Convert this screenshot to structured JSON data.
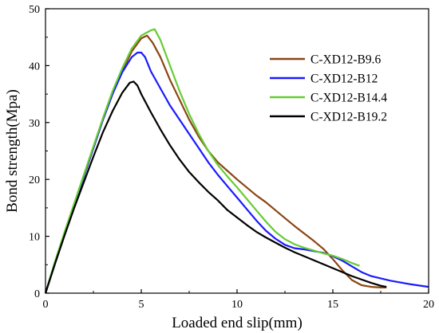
{
  "chart_data": {
    "type": "line",
    "xlabel": "Loaded end slip(mm)",
    "ylabel": "Bond strength(Mpa)",
    "xlim": [
      0,
      20
    ],
    "ylim": [
      0,
      50
    ],
    "xticks": [
      0,
      5,
      10,
      15,
      20
    ],
    "yticks": [
      0,
      10,
      20,
      30,
      40,
      50
    ],
    "grid": false,
    "legend_position": "top-right",
    "series": [
      {
        "name": "C-XD12-B9.6",
        "color": "#8B4513",
        "points": [
          [
            0,
            0
          ],
          [
            0.5,
            5.5
          ],
          [
            1,
            10.5
          ],
          [
            1.5,
            15.5
          ],
          [
            2,
            20.5
          ],
          [
            2.5,
            25.5
          ],
          [
            3,
            30.5
          ],
          [
            3.5,
            35
          ],
          [
            4,
            39
          ],
          [
            4.5,
            42.5
          ],
          [
            5,
            44.8
          ],
          [
            5.3,
            45.3
          ],
          [
            5.6,
            44
          ],
          [
            6,
            41.5
          ],
          [
            6.5,
            37.5
          ],
          [
            7,
            34
          ],
          [
            7.5,
            30.5
          ],
          [
            8,
            27.5
          ],
          [
            8.5,
            25
          ],
          [
            9,
            23
          ],
          [
            9.5,
            21.5
          ],
          [
            10,
            20
          ],
          [
            10.5,
            18.6
          ],
          [
            11,
            17.2
          ],
          [
            11.5,
            16
          ],
          [
            12,
            14.6
          ],
          [
            12.5,
            13.2
          ],
          [
            13,
            11.8
          ],
          [
            13.5,
            10.5
          ],
          [
            14,
            9.2
          ],
          [
            14.5,
            7.8
          ],
          [
            15,
            6
          ],
          [
            15.5,
            4
          ],
          [
            16,
            2.3
          ],
          [
            16.5,
            1.4
          ],
          [
            17,
            1.1
          ],
          [
            17.5,
            1
          ],
          [
            17.8,
            1
          ]
        ]
      },
      {
        "name": "C-XD12-B12",
        "color": "#1a1aff",
        "points": [
          [
            0,
            0
          ],
          [
            0.5,
            5.5
          ],
          [
            1,
            10.5
          ],
          [
            1.5,
            15.5
          ],
          [
            2,
            20.5
          ],
          [
            2.5,
            25.5
          ],
          [
            3,
            30.5
          ],
          [
            3.5,
            35
          ],
          [
            4,
            38.8
          ],
          [
            4.5,
            41.5
          ],
          [
            4.8,
            42.3
          ],
          [
            5,
            42.3
          ],
          [
            5.2,
            41.5
          ],
          [
            5.5,
            39
          ],
          [
            6,
            36
          ],
          [
            6.5,
            33
          ],
          [
            7,
            30.5
          ],
          [
            7.5,
            28
          ],
          [
            8,
            25.5
          ],
          [
            8.5,
            23
          ],
          [
            9,
            20.8
          ],
          [
            9.5,
            18.8
          ],
          [
            10,
            16.8
          ],
          [
            10.5,
            14.8
          ],
          [
            11,
            12.8
          ],
          [
            11.5,
            11
          ],
          [
            12,
            9.6
          ],
          [
            12.5,
            8.5
          ],
          [
            13,
            7.9
          ],
          [
            13.5,
            7.7
          ],
          [
            14,
            7.4
          ],
          [
            14.5,
            7.1
          ],
          [
            15,
            6.5
          ],
          [
            15.5,
            5.7
          ],
          [
            16,
            4.7
          ],
          [
            16.5,
            3.7
          ],
          [
            17,
            3
          ],
          [
            18,
            2.2
          ],
          [
            19,
            1.6
          ],
          [
            20,
            1.1
          ]
        ]
      },
      {
        "name": "C-XD12-B14.4",
        "color": "#66cc33",
        "points": [
          [
            0,
            0
          ],
          [
            0.5,
            5.6
          ],
          [
            1,
            10.8
          ],
          [
            1.5,
            15.8
          ],
          [
            2,
            20.8
          ],
          [
            2.5,
            25.8
          ],
          [
            3,
            30.8
          ],
          [
            3.5,
            35.5
          ],
          [
            4,
            39.5
          ],
          [
            4.5,
            43
          ],
          [
            5,
            45.3
          ],
          [
            5.5,
            46.2
          ],
          [
            5.7,
            46.4
          ],
          [
            6,
            44.5
          ],
          [
            6.5,
            40
          ],
          [
            7,
            35.5
          ],
          [
            7.5,
            31.5
          ],
          [
            8,
            28
          ],
          [
            8.5,
            25
          ],
          [
            9,
            22.5
          ],
          [
            9.5,
            20.5
          ],
          [
            10,
            18.6
          ],
          [
            10.5,
            16.6
          ],
          [
            11,
            14.6
          ],
          [
            11.5,
            12.6
          ],
          [
            12,
            10.8
          ],
          [
            12.5,
            9.5
          ],
          [
            13,
            8.6
          ],
          [
            13.5,
            8
          ],
          [
            14,
            7.5
          ],
          [
            14.5,
            7
          ],
          [
            15,
            6.6
          ],
          [
            15.5,
            6
          ],
          [
            16,
            5.3
          ],
          [
            16.4,
            4.8
          ]
        ]
      },
      {
        "name": "C-XD12-B19.2",
        "color": "#000000",
        "points": [
          [
            0,
            0
          ],
          [
            0.5,
            5.2
          ],
          [
            1,
            10.2
          ],
          [
            1.5,
            15
          ],
          [
            2,
            19.5
          ],
          [
            2.5,
            24
          ],
          [
            3,
            28.3
          ],
          [
            3.5,
            32
          ],
          [
            4,
            35.2
          ],
          [
            4.4,
            37
          ],
          [
            4.6,
            37.2
          ],
          [
            4.8,
            36.5
          ],
          [
            5,
            35
          ],
          [
            5.5,
            31.8
          ],
          [
            6,
            28.8
          ],
          [
            6.5,
            26
          ],
          [
            7,
            23.5
          ],
          [
            7.5,
            21.3
          ],
          [
            8,
            19.5
          ],
          [
            8.5,
            17.8
          ],
          [
            9,
            16.3
          ],
          [
            9.5,
            14.6
          ],
          [
            10,
            13.3
          ],
          [
            10.5,
            12
          ],
          [
            11,
            10.8
          ],
          [
            11.5,
            9.8
          ],
          [
            12,
            8.9
          ],
          [
            12.5,
            8
          ],
          [
            13,
            7.2
          ],
          [
            13.5,
            6.5
          ],
          [
            14,
            5.8
          ],
          [
            14.5,
            5.1
          ],
          [
            15,
            4.4
          ],
          [
            15.5,
            3.7
          ],
          [
            16,
            3
          ],
          [
            16.5,
            2.4
          ],
          [
            17,
            1.8
          ],
          [
            17.5,
            1.3
          ],
          [
            17.8,
            1.1
          ]
        ]
      }
    ]
  }
}
